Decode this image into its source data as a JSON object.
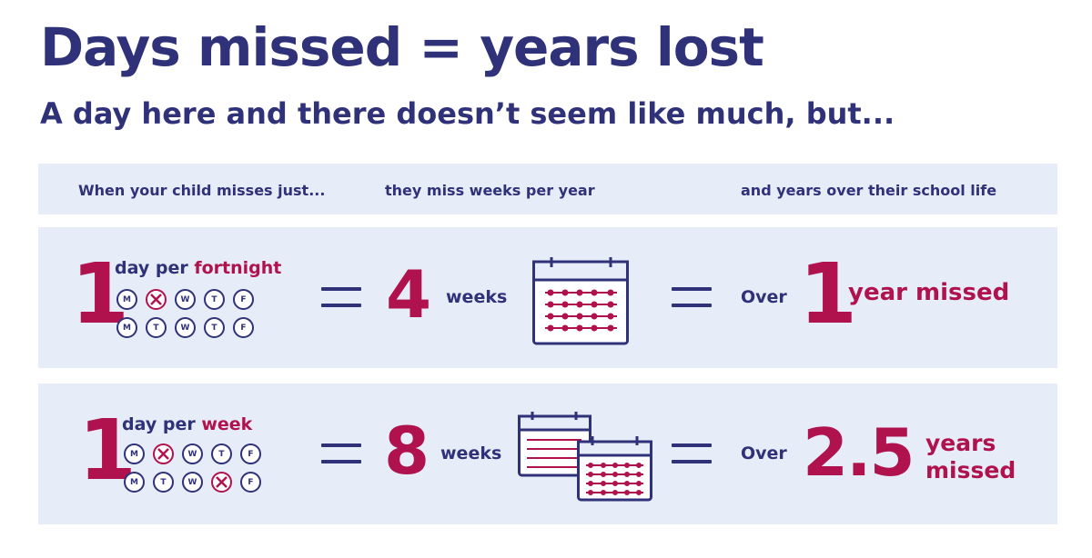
{
  "title": "Days missed = years lost",
  "subtitle": "A day here and there doesn’t seem like much, but...",
  "header": {
    "col1": "When your child misses just...",
    "col2": "they miss weeks per year",
    "col3": "and years over their school life"
  },
  "rows": [
    {
      "count": "1",
      "freq_prefix": "day per",
      "freq_period": "fortnight",
      "week_rows": [
        {
          "days": [
            "M",
            "T",
            "W",
            "T",
            "F"
          ],
          "missed_index": 1
        },
        {
          "days": [
            "M",
            "T",
            "W",
            "T",
            "F"
          ],
          "missed_index": -1
        }
      ],
      "weeks_value": "4",
      "weeks_label": "weeks",
      "calendar_icon": "calendar-icon",
      "over_label": "Over",
      "years_value": "1",
      "years_label": "year missed"
    },
    {
      "count": "1",
      "freq_prefix": "day per",
      "freq_period": "week",
      "week_rows": [
        {
          "days": [
            "M",
            "T",
            "W",
            "T",
            "F"
          ],
          "missed_index": 1
        },
        {
          "days": [
            "M",
            "T",
            "W",
            "T",
            "F"
          ],
          "missed_index": 3
        }
      ],
      "weeks_value": "8",
      "weeks_label": "weeks",
      "calendar_icon": "double-calendar-icon",
      "over_label": "Over",
      "years_value": "2.5",
      "years_label_line1": "years",
      "years_label_line2": "missed"
    }
  ],
  "colors": {
    "navy": "#2f3179",
    "crimson": "#b0124e",
    "band": "#e6edf8"
  }
}
